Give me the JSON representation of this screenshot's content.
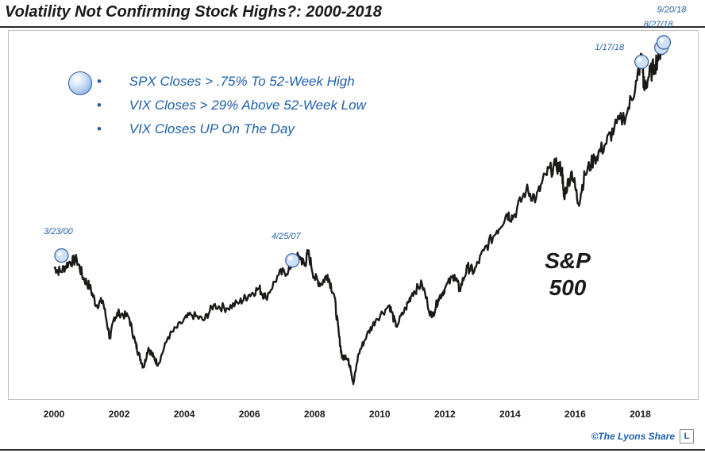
{
  "title": "Volatility Not Confirming Stock Highs?: 2000-2018",
  "legend": [
    "SPX Closes > .75% To 52-Week High",
    "VIX Closes > 29% Above 52-Week Low",
    "VIX Closes UP On The Day"
  ],
  "legend_bullet": "•",
  "series_label": {
    "line1": "S&P",
    "line2": "500"
  },
  "credit": "©The Lyons Share",
  "credit_logo": "L",
  "colors": {
    "line": "#1a1a17",
    "marker_fill": "#cfe0f7",
    "marker_stroke": "#2f5f9f",
    "annotation": "#1f5fa8"
  },
  "chart_data": {
    "type": "line",
    "title": "Volatility Not Confirming Stock Highs?: 2000-2018",
    "series_name": "S&P 500",
    "xlim": [
      2000,
      2019.5
    ],
    "ylim": [
      650,
      3000
    ],
    "x_ticks": [
      2000,
      2002,
      2004,
      2006,
      2008,
      2010,
      2012,
      2014,
      2016,
      2018
    ],
    "x_tick_labels": [
      "2000",
      "2002",
      "2004",
      "2006",
      "2008",
      "2010",
      "2012",
      "2014",
      "2016",
      "2018"
    ],
    "points": [
      [
        2000.0,
        1450
      ],
      [
        2000.2,
        1420
      ],
      [
        2000.45,
        1480
      ],
      [
        2000.7,
        1500
      ],
      [
        2000.9,
        1380
      ],
      [
        2001.1,
        1320
      ],
      [
        2001.3,
        1200
      ],
      [
        2001.5,
        1230
      ],
      [
        2001.72,
        980
      ],
      [
        2001.85,
        1120
      ],
      [
        2002.0,
        1150
      ],
      [
        2002.3,
        1120
      ],
      [
        2002.5,
        950
      ],
      [
        2002.6,
        880
      ],
      [
        2002.75,
        790
      ],
      [
        2002.9,
        920
      ],
      [
        2003.05,
        860
      ],
      [
        2003.2,
        810
      ],
      [
        2003.5,
        990
      ],
      [
        2003.9,
        1080
      ],
      [
        2004.2,
        1140
      ],
      [
        2004.6,
        1100
      ],
      [
        2004.9,
        1200
      ],
      [
        2005.3,
        1180
      ],
      [
        2005.7,
        1220
      ],
      [
        2006.0,
        1270
      ],
      [
        2006.3,
        1310
      ],
      [
        2006.5,
        1250
      ],
      [
        2006.9,
        1400
      ],
      [
        2007.2,
        1430
      ],
      [
        2007.32,
        1490
      ],
      [
        2007.55,
        1520
      ],
      [
        2007.7,
        1460
      ],
      [
        2007.8,
        1550
      ],
      [
        2008.0,
        1380
      ],
      [
        2008.2,
        1340
      ],
      [
        2008.4,
        1400
      ],
      [
        2008.6,
        1270
      ],
      [
        2008.75,
        1000
      ],
      [
        2008.85,
        850
      ],
      [
        2008.95,
        870
      ],
      [
        2009.1,
        800
      ],
      [
        2009.19,
        680
      ],
      [
        2009.35,
        880
      ],
      [
        2009.6,
        1000
      ],
      [
        2009.9,
        1110
      ],
      [
        2010.3,
        1200
      ],
      [
        2010.5,
        1060
      ],
      [
        2010.8,
        1180
      ],
      [
        2011.0,
        1280
      ],
      [
        2011.3,
        1340
      ],
      [
        2011.6,
        1120
      ],
      [
        2011.8,
        1240
      ],
      [
        2012.0,
        1310
      ],
      [
        2012.3,
        1400
      ],
      [
        2012.45,
        1300
      ],
      [
        2012.7,
        1450
      ],
      [
        2012.9,
        1420
      ],
      [
        2013.2,
        1560
      ],
      [
        2013.6,
        1690
      ],
      [
        2013.9,
        1800
      ],
      [
        2014.1,
        1780
      ],
      [
        2014.5,
        1960
      ],
      [
        2014.8,
        1900
      ],
      [
        2015.1,
        2060
      ],
      [
        2015.4,
        2120
      ],
      [
        2015.6,
        2090
      ],
      [
        2015.65,
        1920
      ],
      [
        2015.9,
        2080
      ],
      [
        2016.1,
        1870
      ],
      [
        2016.3,
        2060
      ],
      [
        2016.6,
        2170
      ],
      [
        2016.9,
        2250
      ],
      [
        2017.2,
        2360
      ],
      [
        2017.6,
        2470
      ],
      [
        2017.9,
        2680
      ],
      [
        2018.05,
        2850
      ],
      [
        2018.12,
        2620
      ],
      [
        2018.25,
        2700
      ],
      [
        2018.45,
        2780
      ],
      [
        2018.65,
        2900
      ],
      [
        2018.72,
        2930
      ]
    ],
    "events": [
      {
        "label": "3/23/00",
        "x": 2000.23,
        "y": 1527
      },
      {
        "label": "4/25/07",
        "x": 2007.32,
        "y": 1495
      },
      {
        "label": "1/17/18",
        "x": 2018.04,
        "y": 2802
      },
      {
        "label": "8/27/18",
        "x": 2018.65,
        "y": 2896
      },
      {
        "label": "9/20/18",
        "x": 2018.72,
        "y": 2930
      }
    ]
  }
}
